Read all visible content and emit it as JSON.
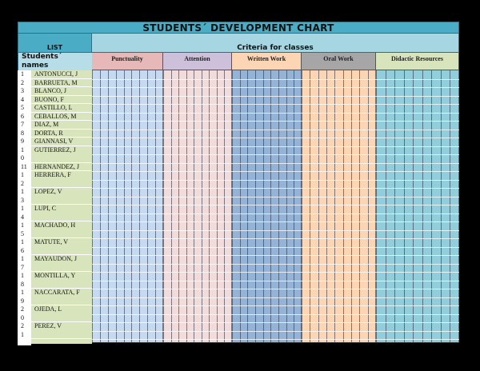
{
  "title": "STUDENTS´ DEVELOPMENT CHART",
  "header": {
    "list_label": "LIST",
    "criteria_label": "Criteria for classes",
    "students_label_line1": "Students´",
    "students_label_line2": "names"
  },
  "criteria": [
    {
      "label": "Punctuality",
      "header_color": "#e6b9b8",
      "grid_color": "#c5d9f1",
      "columns": 9
    },
    {
      "label": "Attention",
      "header_color": "#ccc0da",
      "grid_color": "#f2dcdb",
      "columns": 9
    },
    {
      "label": "Written Work",
      "header_color": "#fcd5b4",
      "grid_color": "#95b3d7",
      "columns": 9
    },
    {
      "label": "Oral Work",
      "header_color": "#a6a6a6",
      "grid_color": "#fcd5b4",
      "columns": 9
    },
    {
      "label": "Didactic Resources",
      "header_color": "#d8e4bc",
      "grid_color": "#92cddc",
      "columns": 9
    }
  ],
  "students": [
    {
      "num": "1",
      "name": "ANTONUCCI, J"
    },
    {
      "num": "2",
      "name": "BARRUETA, M"
    },
    {
      "num": "3",
      "name": "BLANCO, J"
    },
    {
      "num": "4",
      "name": "BUONO, F"
    },
    {
      "num": "5",
      "name": "CASTILLO, L"
    },
    {
      "num": "6",
      "name": "CEBALLOS, M"
    },
    {
      "num": "7",
      "name": "DIAZ, M"
    },
    {
      "num": "8",
      "name": "DORTA, R"
    },
    {
      "num": "9",
      "name": "GIANNASI, V"
    },
    {
      "num": "10",
      "name": "GUTIERREZ, J"
    },
    {
      "num": "11",
      "name": "HERNANDEZ, J"
    },
    {
      "num": "12",
      "name": "HERRERA, F"
    },
    {
      "num": "13",
      "name": "LOPEZ, V"
    },
    {
      "num": "14",
      "name": "LUPI, C"
    },
    {
      "num": "15",
      "name": "MACHADO, H"
    },
    {
      "num": "16",
      "name": "MATUTE, V"
    },
    {
      "num": "17",
      "name": "MAYAUDON, J"
    },
    {
      "num": "18",
      "name": "MONTILLA, Y"
    },
    {
      "num": "19",
      "name": "NACCARATA, F"
    },
    {
      "num": "20",
      "name": "OJEDA, L"
    },
    {
      "num": "21",
      "name": "PEREZ, V"
    }
  ]
}
